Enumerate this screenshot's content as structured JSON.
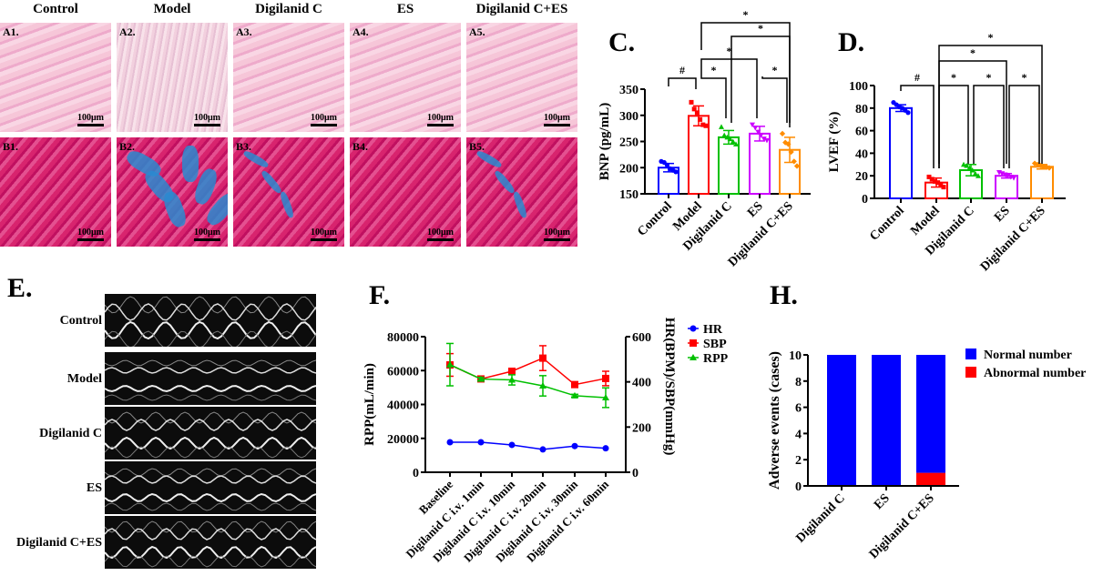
{
  "histology": {
    "columns": [
      "Control",
      "Model",
      "Digilanid C",
      "ES",
      "Digilanid C+ES"
    ],
    "row_a_tags": [
      "A1.",
      "A2.",
      "A3.",
      "A4.",
      "A5."
    ],
    "row_b_tags": [
      "B1.",
      "B2.",
      "B3.",
      "B4.",
      "B5."
    ],
    "scale_bar": "100μm"
  },
  "panel_labels": {
    "C": "C.",
    "D": "D.",
    "E": "E.",
    "F": "F.",
    "H": "H."
  },
  "echo": {
    "rows": [
      "Control",
      "Model",
      "Digilanid C",
      "ES",
      "Digilanid C+ES"
    ]
  },
  "chart_data": [
    {
      "id": "C",
      "type": "bar",
      "ylabel": "BNP (pg/mL)",
      "ylim": [
        150,
        350
      ],
      "yticks": [
        150,
        200,
        250,
        300,
        350
      ],
      "categories": [
        "Control",
        "Model",
        "Digilanid C",
        "ES",
        "Digilanid C+ES"
      ],
      "colors": [
        "#0000ff",
        "#ff0000",
        "#00c000",
        "#cc00ff",
        "#ff8c00"
      ],
      "values": [
        200,
        299,
        258,
        265,
        234
      ],
      "sd": [
        8,
        19,
        13,
        14,
        24
      ],
      "points": [
        [
          212,
          210,
          205,
          198,
          195,
          192
        ],
        [
          325,
          312,
          305,
          292,
          282,
          280
        ],
        [
          278,
          262,
          258,
          255,
          250,
          245
        ],
        [
          282,
          276,
          268,
          262,
          255,
          252
        ],
        [
          265,
          248,
          245,
          230,
          212,
          203
        ]
      ],
      "significance": [
        {
          "a": 0,
          "b": 1,
          "label": "#"
        },
        {
          "a": 1,
          "b": 2,
          "label": "*"
        },
        {
          "a": 3,
          "b": 4,
          "label": "*"
        },
        {
          "a": 1,
          "b": 3,
          "label": "*"
        },
        {
          "a": 2,
          "b": 4,
          "label": "*"
        },
        {
          "a": 1,
          "b": 4,
          "label": "*"
        }
      ]
    },
    {
      "id": "D",
      "type": "bar",
      "ylabel": "LVEF (%)",
      "ylim": [
        0,
        100
      ],
      "yticks": [
        0,
        20,
        40,
        60,
        80,
        100
      ],
      "categories": [
        "Control",
        "Model",
        "Digilanid C",
        "ES",
        "Digilanid C+ES"
      ],
      "colors": [
        "#0000ff",
        "#ff0000",
        "#00c000",
        "#cc00ff",
        "#ff8c00"
      ],
      "values": [
        80,
        14,
        25,
        20,
        28
      ],
      "sd": [
        3,
        4,
        5,
        2,
        2
      ],
      "points": [
        [
          85,
          83,
          81,
          80,
          78,
          76
        ],
        [
          19,
          17,
          15,
          14,
          12,
          10
        ],
        [
          30,
          29,
          27,
          25,
          22,
          20
        ],
        [
          23,
          22,
          21,
          20,
          19,
          18
        ],
        [
          31,
          30,
          29,
          28,
          28,
          27
        ]
      ],
      "significance": [
        {
          "a": 0,
          "b": 1,
          "label": "#"
        },
        {
          "a": 1,
          "b": 2,
          "label": "*"
        },
        {
          "a": 2,
          "b": 3,
          "label": "*"
        },
        {
          "a": 3,
          "b": 4,
          "label": "*"
        },
        {
          "a": 1,
          "b": 3,
          "label": "*"
        },
        {
          "a": 1,
          "b": 4,
          "label": "*"
        }
      ]
    },
    {
      "id": "F",
      "type": "line",
      "ylabel": "RPP(mL/min)",
      "y2label": "HR(BPM)/SBP(mmHg)",
      "ylim": [
        0,
        80000
      ],
      "yticks": [
        0,
        20000,
        40000,
        60000,
        80000
      ],
      "y2lim": [
        0,
        600
      ],
      "y2ticks": [
        0,
        200,
        400,
        600
      ],
      "categories": [
        "Baseline",
        "Digilanid C i.v. 1min",
        "Digilanid C i.v. 10min",
        "Digilanid C i.v. 20min",
        "Digilanid C i.v. 30min",
        "Digilanid C i.v. 60min"
      ],
      "legend_placement": "right",
      "series": [
        {
          "name": "HR",
          "axis": "right",
          "color": "#0000ff",
          "marker": "circle",
          "values": [
            133,
            133,
            121,
            101,
            116,
            106
          ],
          "err": [
            0,
            0,
            0,
            0,
            0,
            0
          ]
        },
        {
          "name": "SBP",
          "axis": "right",
          "color": "#ff0000",
          "marker": "square",
          "values": [
            475,
            413,
            447,
            505,
            388,
            415
          ],
          "err": [
            50,
            5,
            12,
            55,
            5,
            32
          ]
        },
        {
          "name": "RPP",
          "axis": "left",
          "color": "#00c000",
          "marker": "triangle",
          "values": [
            63500,
            55000,
            54500,
            51000,
            45200,
            44000
          ],
          "err": [
            12500,
            1000,
            3000,
            6000,
            800,
            5800
          ]
        }
      ]
    },
    {
      "id": "H",
      "type": "bar",
      "stacked": true,
      "ylabel": "Adverse events (cases)",
      "ylim": [
        0,
        10
      ],
      "yticks": [
        0,
        2,
        4,
        6,
        8,
        10
      ],
      "categories": [
        "Digilanid C",
        "ES",
        "Digilanid C+ES"
      ],
      "legend_placement": "right",
      "series": [
        {
          "name": "Abnormal number",
          "color": "#ff0000",
          "values": [
            0,
            0,
            1
          ]
        },
        {
          "name": "Normal number",
          "color": "#0000ff",
          "values": [
            10,
            10,
            9
          ]
        }
      ]
    }
  ]
}
